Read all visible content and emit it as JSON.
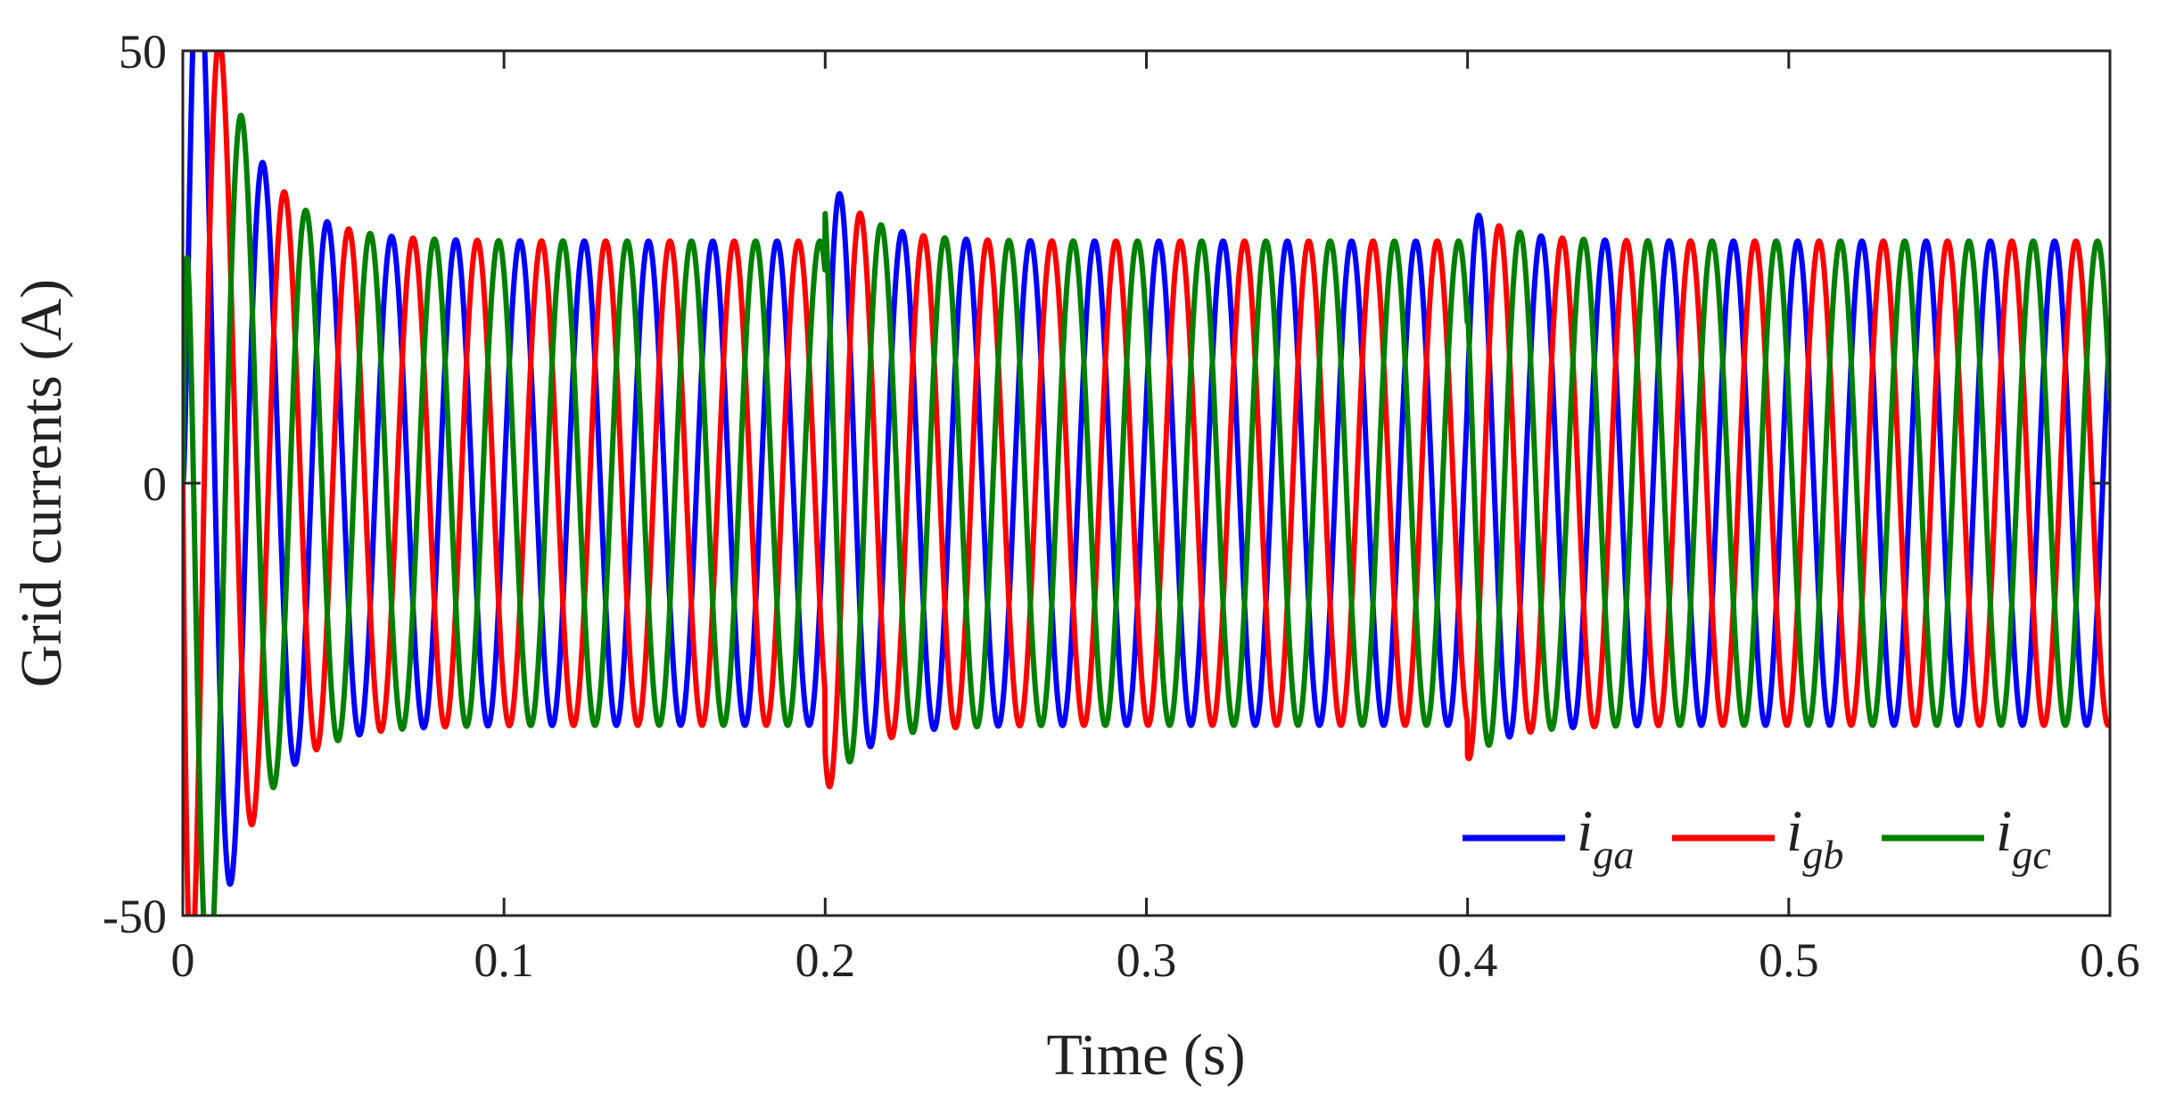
{
  "chart_data": {
    "type": "line",
    "title": "",
    "xlabel": "Time (s)",
    "ylabel": "Grid currents (A)",
    "xlim": [
      0,
      0.6
    ],
    "ylim": [
      -50,
      50
    ],
    "x_ticks": [
      "0",
      "0.1",
      "0.2",
      "0.3",
      "0.4",
      "0.5",
      "0.6"
    ],
    "y_ticks": [
      "-50",
      "0",
      "50"
    ],
    "grid": false,
    "legend_position": "bottom-right",
    "legend_orientation": "horizontal",
    "signal": {
      "frequency_hz": 50,
      "steady_amplitude_a": 28,
      "events": [
        {
          "t": 0.2,
          "overshoot_a": 36
        },
        {
          "t": 0.4,
          "overshoot_a": 32
        }
      ],
      "startup_peak_a": 50,
      "startup_settling_s": 0.05
    },
    "series": [
      {
        "name": "i",
        "subscript": "ga",
        "color": "#0000ff",
        "phase_deg": 0
      },
      {
        "name": "i",
        "subscript": "gb",
        "color": "#ff0000",
        "phase_deg": -120
      },
      {
        "name": "i",
        "subscript": "gc",
        "color": "#008000",
        "phase_deg": 120
      }
    ]
  }
}
